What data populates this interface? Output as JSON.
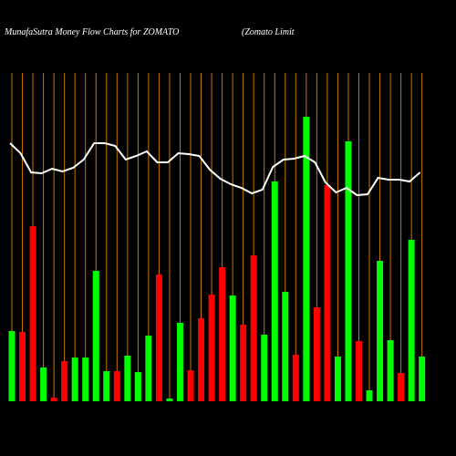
{
  "chart_data": {
    "type": "bar",
    "title": "MunafaSutra  Money Flow  Charts for ZOMATO",
    "subtitle": "(Zomato  Limit",
    "ylim": [
      0,
      440
    ],
    "grid_color": "#c87800",
    "bars": {
      "values": [
        77,
        76,
        192,
        37,
        4,
        44,
        48,
        48,
        143,
        33,
        33,
        50,
        32,
        72,
        139,
        3,
        86,
        34,
        91,
        117,
        147,
        116,
        84,
        160,
        73,
        241,
        120,
        51,
        312,
        103,
        237,
        49,
        285,
        66,
        12,
        154,
        67,
        31,
        177,
        49
      ],
      "colors": [
        "#00ff00",
        "#ff0000",
        "#ff0000",
        "#00ff00",
        "#ff0000",
        "#ff0000",
        "#00ff00",
        "#00ff00",
        "#00ff00",
        "#00ff00",
        "#ff0000",
        "#00ff00",
        "#00ff00",
        "#00ff00",
        "#ff0000",
        "#00ff00",
        "#00ff00",
        "#ff0000",
        "#ff0000",
        "#ff0000",
        "#ff0000",
        "#00ff00",
        "#ff0000",
        "#ff0000",
        "#00ff00",
        "#00ff00",
        "#00ff00",
        "#ff0000",
        "#00ff00",
        "#ff0000",
        "#ff0000",
        "#00ff00",
        "#00ff00",
        "#ff0000",
        "#00ff00",
        "#00ff00",
        "#00ff00",
        "#ff0000",
        "#00ff00",
        "#00ff00"
      ]
    },
    "line": {
      "color": "#ffffff",
      "values": [
        283,
        272,
        251,
        250,
        255,
        252,
        256,
        265,
        283,
        283,
        280,
        265,
        269,
        274,
        262,
        262,
        272,
        271,
        269,
        254,
        244,
        238,
        234,
        228,
        232,
        257,
        265,
        266,
        269,
        262,
        240,
        229,
        234,
        226,
        227,
        245,
        243,
        243,
        241,
        251
      ]
    }
  }
}
